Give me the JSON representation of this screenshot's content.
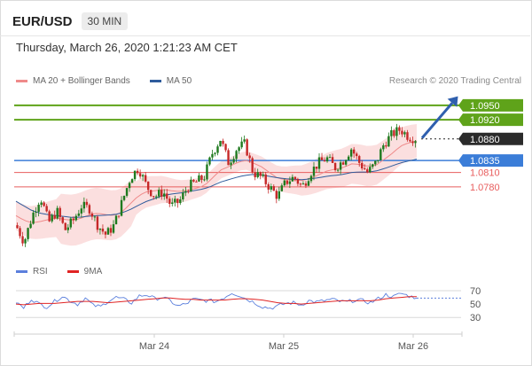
{
  "header": {
    "symbol": "EUR/USD",
    "timeframe": "30 MIN",
    "datetime": "Thursday, March 26, 2020 1:21:23 AM CET"
  },
  "legend": {
    "main": [
      {
        "label": "MA 20 + Bollinger Bands",
        "color": "#ef8a8a"
      },
      {
        "label": "MA 50",
        "color": "#2f5c9c"
      }
    ],
    "credit": "Research © 2020 Trading Central",
    "rsi": [
      {
        "label": "RSI",
        "color": "#5b7fdc"
      },
      {
        "label": "9MA",
        "color": "#e02424"
      }
    ]
  },
  "colors": {
    "resistance": "#5fa31a",
    "pivot": "#3b7dd8",
    "support": "#e85d5d",
    "price": "#222222",
    "candle_up": "#1e7a1e",
    "candle_down": "#c62828",
    "bands_fill": "#fbdcdc"
  },
  "chart_data": [
    {
      "type": "candlestick",
      "y_range": [
        1.063,
        1.0985
      ],
      "x_labels": [
        "Mar 24",
        "Mar 25",
        "Mar 26"
      ],
      "levels": [
        {
          "value": 1.095,
          "label": "1.0950",
          "role": "resistance"
        },
        {
          "value": 1.092,
          "label": "1.0920",
          "role": "resistance"
        },
        {
          "value": 1.088,
          "label": "1.0880",
          "role": "price"
        },
        {
          "value": 1.0835,
          "label": "1.0835",
          "role": "pivot"
        },
        {
          "value": 1.081,
          "label": "1.0810",
          "role": "support"
        },
        {
          "value": 1.078,
          "label": "1.0780",
          "role": "support"
        }
      ],
      "close_path": [
        1.07,
        1.0665,
        1.072,
        1.076,
        1.0705,
        1.073,
        1.069,
        1.071,
        1.074,
        1.0735,
        1.07,
        1.068,
        1.07,
        1.075,
        1.08,
        1.082,
        1.078,
        1.076,
        1.077,
        1.074,
        1.075,
        1.078,
        1.079,
        1.08,
        1.085,
        1.088,
        1.083,
        1.086,
        1.087,
        1.081,
        1.08,
        1.078,
        1.076,
        1.079,
        1.08,
        1.078,
        1.081,
        1.083,
        1.084,
        1.082,
        1.0835,
        1.086,
        1.083,
        1.081,
        1.083,
        1.087,
        1.089,
        1.09,
        1.0885,
        1.088
      ],
      "ma20": [
        1.072,
        1.071,
        1.0705,
        1.0708,
        1.0712,
        1.0715,
        1.0712,
        1.071,
        1.0715,
        1.0722,
        1.0725,
        1.0722,
        1.072,
        1.0728,
        1.0745,
        1.0762,
        1.077,
        1.0772,
        1.0775,
        1.0772,
        1.077,
        1.0773,
        1.0777,
        1.0782,
        1.0798,
        1.0815,
        1.0822,
        1.083,
        1.0836,
        1.083,
        1.0822,
        1.081,
        1.0798,
        1.0795,
        1.0795,
        1.0793,
        1.0798,
        1.0805,
        1.0813,
        1.0817,
        1.082,
        1.0828,
        1.0827,
        1.0823,
        1.0825,
        1.0837,
        1.085,
        1.0865,
        1.0872,
        1.0876
      ],
      "ma50": [
        1.075,
        1.074,
        1.073,
        1.0725,
        1.0722,
        1.072,
        1.0718,
        1.0716,
        1.0717,
        1.0719,
        1.072,
        1.0721,
        1.0722,
        1.0726,
        1.0733,
        1.0742,
        1.075,
        1.0756,
        1.0762,
        1.0765,
        1.0767,
        1.077,
        1.0773,
        1.0776,
        1.0782,
        1.079,
        1.0795,
        1.08,
        1.0804,
        1.0806,
        1.0805,
        1.0802,
        1.0799,
        1.0797,
        1.0796,
        1.0795,
        1.0797,
        1.0799,
        1.0802,
        1.0804,
        1.0806,
        1.081,
        1.0811,
        1.0811,
        1.0813,
        1.0818,
        1.0824,
        1.083,
        1.0834,
        1.0838
      ]
    },
    {
      "type": "line",
      "y_ticks": [
        70,
        50,
        30
      ],
      "y_range": [
        25,
        78
      ],
      "x_labels": [
        "Mar 24",
        "Mar 25",
        "Mar 26"
      ],
      "series": [
        {
          "name": "RSI",
          "values": [
            53,
            44,
            58,
            50,
            46,
            54,
            62,
            55,
            50,
            59,
            48,
            46,
            55,
            60,
            57,
            52,
            62,
            64,
            58,
            60,
            55,
            47,
            50,
            57,
            56,
            55,
            54,
            60,
            67,
            63,
            57,
            52,
            46,
            44,
            47,
            51,
            52,
            49,
            55,
            53,
            55,
            57,
            54,
            53,
            56,
            55,
            52,
            58,
            64,
            61,
            66,
            62,
            59
          ]
        },
        {
          "name": "9MA",
          "values": [
            50,
            49,
            50,
            51,
            51,
            51,
            52,
            53,
            54,
            54,
            54,
            53,
            52,
            53,
            54,
            55,
            56,
            57,
            58,
            59,
            59,
            58,
            57,
            57,
            56,
            56,
            56,
            56,
            57,
            58,
            58,
            57,
            56,
            54,
            52,
            51,
            51,
            50,
            51,
            52,
            53,
            54,
            55,
            55,
            55,
            55,
            55,
            56,
            58,
            59,
            60,
            61,
            61
          ]
        }
      ]
    }
  ]
}
